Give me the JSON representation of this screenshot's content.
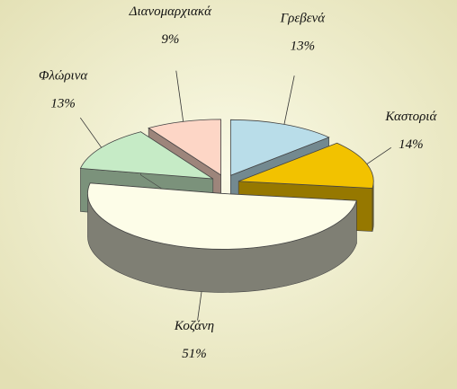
{
  "chart_data": {
    "type": "pie",
    "categories": [
      "Γρεβενά",
      "Καστοριά",
      "Κοζάνη",
      "Φλώρινα",
      "Διανομαρχιακά"
    ],
    "values": [
      13,
      14,
      51,
      13,
      9
    ],
    "value_labels": [
      "13%",
      "14%",
      "51%",
      "13%",
      "9%"
    ],
    "colors": [
      "#b9dde9",
      "#f2c200",
      "#fdfde8",
      "#c6ebc6",
      "#fdd6c6"
    ]
  }
}
